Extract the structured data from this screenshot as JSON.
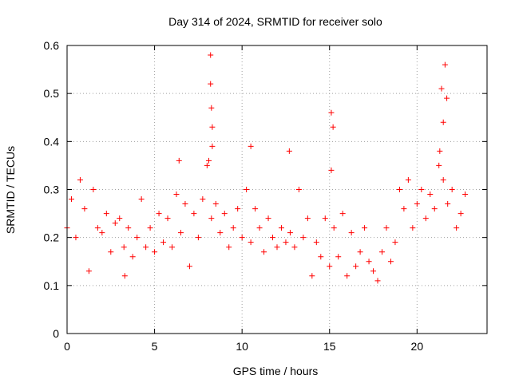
{
  "chart_data": {
    "type": "scatter",
    "title": "Day 314 of 2024, SRMTID for receiver solo",
    "xlabel": "GPS time / hours",
    "ylabel": "SRMTID / TECUs",
    "xlim": [
      0,
      24
    ],
    "ylim": [
      0,
      0.6
    ],
    "x_ticks": [
      0,
      5,
      10,
      15,
      20
    ],
    "x_tick_labels": [
      "0",
      "5",
      "10",
      "15",
      "20"
    ],
    "y_ticks": [
      0,
      0.1,
      0.2,
      0.3,
      0.4,
      0.5,
      0.6
    ],
    "y_tick_labels": [
      "0",
      "0.1",
      "0.2",
      "0.3",
      "0.4",
      "0.5",
      "0.6"
    ],
    "grid": true,
    "marker": "+",
    "color": "#ff0000",
    "series": [
      {
        "name": "SRMTID",
        "x": [
          0.0,
          0.25,
          0.5,
          0.75,
          1.0,
          1.25,
          1.5,
          1.75,
          2.0,
          2.25,
          2.5,
          2.75,
          3.0,
          3.25,
          3.5,
          3.75,
          4.0,
          4.25,
          4.5,
          4.75,
          5.0,
          5.25,
          5.5,
          5.75,
          6.0,
          6.25,
          6.5,
          6.75,
          7.0,
          7.25,
          7.5,
          7.75,
          8.0,
          8.25,
          8.5,
          8.75,
          9.0,
          9.25,
          9.5,
          9.75,
          10.0,
          10.25,
          10.5,
          10.75,
          11.0,
          11.25,
          11.5,
          11.75,
          12.0,
          12.25,
          12.5,
          12.75,
          13.0,
          13.25,
          13.5,
          13.75,
          14.0,
          14.25,
          14.5,
          14.75,
          15.0,
          15.25,
          15.5,
          15.75,
          16.0,
          16.25,
          16.5,
          16.75,
          17.0,
          17.25,
          17.5,
          17.75,
          18.0,
          18.25,
          18.5,
          18.75,
          19.0,
          19.25,
          19.5,
          19.75,
          20.0,
          20.25,
          20.5,
          20.75,
          21.0,
          21.25,
          21.5,
          21.75,
          22.0,
          22.25,
          22.5,
          22.75,
          3.3,
          8.1,
          15.1,
          15.2,
          21.3,
          21.4,
          21.6,
          21.7,
          8.2,
          8.2,
          8.25,
          8.3,
          8.3,
          6.4,
          10.5,
          12.7,
          15.1,
          21.5
        ],
        "y": [
          0.22,
          0.28,
          0.2,
          0.32,
          0.26,
          0.13,
          0.3,
          0.22,
          0.21,
          0.25,
          0.17,
          0.23,
          0.24,
          0.18,
          0.22,
          0.16,
          0.2,
          0.28,
          0.18,
          0.22,
          0.17,
          0.25,
          0.19,
          0.24,
          0.18,
          0.29,
          0.21,
          0.27,
          0.14,
          0.25,
          0.2,
          0.28,
          0.35,
          0.24,
          0.27,
          0.21,
          0.25,
          0.18,
          0.22,
          0.26,
          0.2,
          0.3,
          0.19,
          0.26,
          0.22,
          0.17,
          0.24,
          0.2,
          0.18,
          0.22,
          0.19,
          0.21,
          0.18,
          0.3,
          0.2,
          0.24,
          0.12,
          0.19,
          0.16,
          0.24,
          0.14,
          0.22,
          0.16,
          0.25,
          0.12,
          0.21,
          0.14,
          0.17,
          0.22,
          0.15,
          0.13,
          0.11,
          0.17,
          0.22,
          0.15,
          0.19,
          0.3,
          0.26,
          0.32,
          0.22,
          0.27,
          0.3,
          0.24,
          0.29,
          0.26,
          0.35,
          0.32,
          0.27,
          0.3,
          0.22,
          0.25,
          0.29,
          0.12,
          0.36,
          0.46,
          0.43,
          0.38,
          0.51,
          0.56,
          0.49,
          0.58,
          0.52,
          0.47,
          0.43,
          0.39,
          0.36,
          0.39,
          0.38,
          0.34,
          0.44
        ]
      }
    ]
  }
}
